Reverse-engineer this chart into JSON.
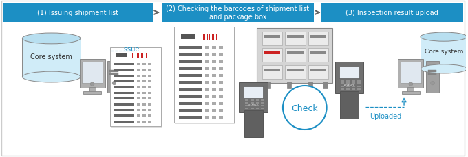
{
  "background_color": "#ffffff",
  "header_bg": "#1c8fc4",
  "header_text_color": "#ffffff",
  "arrow_color": "#777777",
  "blue": "#1c8fc4",
  "steps": [
    "(1) Issuing shipment list",
    "(2) Checking the barcodes of shipment list\nand package box",
    "(3) Inspection result upload"
  ],
  "issue_label": "Issue",
  "check_label": "Check",
  "uploaded_label": "Uploaded",
  "cylinder_top": "#b8dff0",
  "cylinder_body": "#d0ecf8",
  "monitor_body": "#b0b0b0",
  "monitor_screen": "#e0e8f0",
  "monitor_tower": "#a0a0a0",
  "scanner_body": "#707070",
  "doc_line_dark": "#555555",
  "doc_line_light": "#aaaaaa",
  "barcode_dark": "#444444",
  "barcode_red": "#cc2222",
  "shelf_body": "#c0c0c0",
  "shelf_box": "#e8e8e8"
}
